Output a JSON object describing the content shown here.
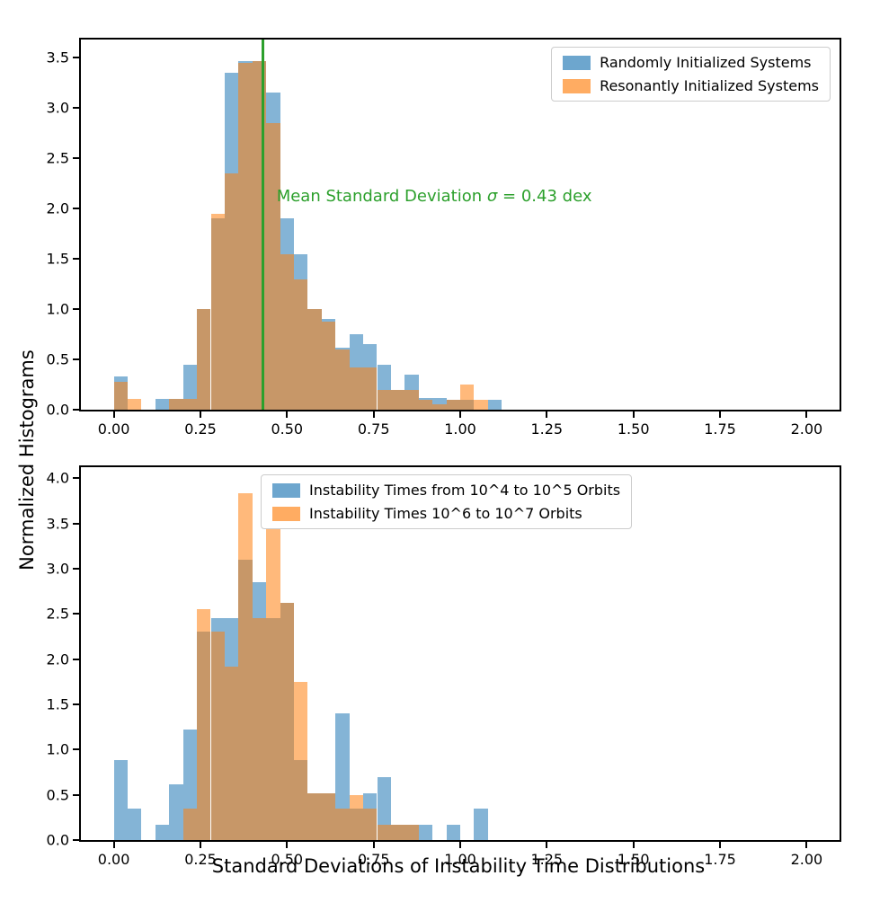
{
  "figure": {
    "ylabel": "Normalized Histograms",
    "xlabel": "Standard Deviations of Instability Time Distributions"
  },
  "chart_data": [
    {
      "type": "histogram",
      "panel": "top",
      "bin_start": 0.0,
      "bin_width": 0.04,
      "xlim": [
        -0.095,
        2.095
      ],
      "ylim": [
        0,
        3.68
      ],
      "xticks": [
        0.0,
        0.25,
        0.5,
        0.75,
        1.0,
        1.25,
        1.5,
        1.75,
        2.0
      ],
      "xtick_labels": [
        "0.00",
        "0.25",
        "0.50",
        "0.75",
        "1.00",
        "1.25",
        "1.50",
        "1.75",
        "2.00"
      ],
      "yticks": [
        0.0,
        0.5,
        1.0,
        1.5,
        2.0,
        2.5,
        3.0,
        3.5
      ],
      "ytick_labels": [
        "0.0",
        "0.5",
        "1.0",
        "1.5",
        "2.0",
        "2.5",
        "3.0",
        "3.5"
      ],
      "grid": false,
      "series": [
        {
          "name": "Randomly Initialized Systems",
          "color": "#1f77b4",
          "alpha": 0.55,
          "values": [
            0.33,
            0,
            0,
            0.11,
            0.11,
            0.45,
            1.0,
            1.9,
            3.35,
            3.47,
            3.47,
            3.15,
            1.9,
            1.55,
            1.0,
            0.9,
            0.62,
            0.75,
            0.65,
            0.45,
            0.2,
            0.35,
            0.12,
            0.12,
            0.1,
            0.1,
            0,
            0.1
          ]
        },
        {
          "name": "Resonantly Initialized Systems",
          "color": "#ff7f0e",
          "alpha": 0.55,
          "values": [
            0.28,
            0.11,
            0,
            0,
            0.11,
            0.11,
            1.0,
            1.95,
            2.35,
            3.45,
            3.47,
            2.85,
            1.55,
            1.3,
            1.0,
            0.88,
            0.6,
            0.42,
            0.42,
            0.2,
            0.2,
            0.2,
            0.1,
            0.05,
            0.1,
            0.25,
            0.1,
            0
          ]
        }
      ],
      "vline": {
        "x": 0.43,
        "color": "#2ca02c",
        "width": 3
      },
      "annotation": {
        "text_before_sigma": "Mean Standard Deviation ",
        "sigma": "σ",
        "text_after_sigma": " = 0.43 dex",
        "full_text": "Mean Standard Deviation σ = 0.43 dex",
        "x": 0.47,
        "y": 2.12,
        "color": "#2ca02c"
      },
      "legend": {
        "loc": "upper right",
        "top": 8,
        "right": 10
      }
    },
    {
      "type": "histogram",
      "panel": "bottom",
      "bin_start": 0.0,
      "bin_width": 0.04,
      "xlim": [
        -0.095,
        2.095
      ],
      "ylim": [
        0,
        4.12
      ],
      "xticks": [
        0.0,
        0.25,
        0.5,
        0.75,
        1.0,
        1.25,
        1.5,
        1.75,
        2.0
      ],
      "xtick_labels": [
        "0.00",
        "0.25",
        "0.50",
        "0.75",
        "1.00",
        "1.25",
        "1.50",
        "1.75",
        "2.00"
      ],
      "yticks": [
        0.0,
        0.5,
        1.0,
        1.5,
        2.0,
        2.5,
        3.0,
        3.5,
        4.0
      ],
      "ytick_labels": [
        "0.0",
        "0.5",
        "1.0",
        "1.5",
        "2.0",
        "2.5",
        "3.0",
        "3.5",
        "4.0"
      ],
      "grid": false,
      "series": [
        {
          "name": "Instability Times from 10^4 to 10^5 Orbits",
          "color": "#1f77b4",
          "alpha": 0.55,
          "values": [
            0.88,
            0.35,
            0,
            0.17,
            0.62,
            1.22,
            2.3,
            2.45,
            2.45,
            3.1,
            2.85,
            2.45,
            2.62,
            0.88,
            0.52,
            0.52,
            1.4,
            0.35,
            0.52,
            0.7,
            0.17,
            0.17,
            0.17,
            0,
            0.17,
            0,
            0.35,
            0
          ]
        },
        {
          "name": "Instability Times 10^6 to 10^7 Orbits",
          "color": "#ff7f0e",
          "alpha": 0.55,
          "values": [
            0,
            0,
            0,
            0,
            0,
            0.35,
            2.55,
            2.3,
            1.92,
            3.83,
            2.45,
            3.83,
            2.62,
            1.75,
            0.52,
            0.52,
            0.35,
            0.5,
            0.35,
            0.17,
            0.17,
            0.17,
            0,
            0,
            0,
            0,
            0,
            0
          ]
        }
      ],
      "legend": {
        "loc": "upper center",
        "top": 8,
        "left": 200
      }
    }
  ]
}
